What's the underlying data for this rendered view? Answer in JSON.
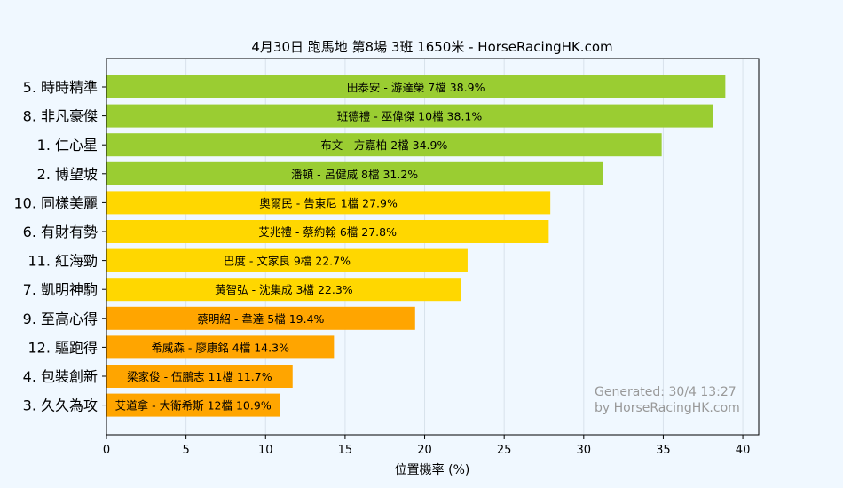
{
  "chart_data": {
    "type": "bar",
    "orientation": "horizontal",
    "title": "4月30日  跑馬地  第8場  3班  1650米 - HorseRacingHK.com",
    "xlabel": "位置機率 (%)",
    "ylabel": "",
    "xlim": [
      0,
      41
    ],
    "xticks": [
      0,
      5,
      10,
      15,
      20,
      25,
      30,
      35,
      40
    ],
    "grid": "vertical",
    "categories": [
      "5. 時時精準",
      "8. 非凡豪傑",
      "1. 仁心星",
      "2. 博望坡",
      "10. 同樣美麗",
      "6. 有財有勢",
      "11. 紅海勁",
      "7. 凱明神駒",
      "9. 至高心得",
      "12. 驅跑得",
      "4. 包裝創新",
      "3. 久久為攻"
    ],
    "values": [
      38.9,
      38.1,
      34.9,
      31.2,
      27.9,
      27.8,
      22.7,
      22.3,
      19.4,
      14.3,
      11.7,
      10.9
    ],
    "bar_labels": [
      "田泰安 - 游達榮 7檔  38.9%",
      "班德禮 - 巫偉傑 10檔  38.1%",
      "布文 - 方嘉柏 2檔  34.9%",
      "潘頓 - 呂健威 8檔  31.2%",
      "奧爾民 - 告東尼 1檔  27.9%",
      "艾兆禮 - 蔡約翰 6檔  27.8%",
      "巴度 - 文家良 9檔  22.7%",
      "黃智弘 - 沈集成 3檔  22.3%",
      "蔡明紹 - 韋達 5檔  19.4%",
      "希威森 - 廖康銘 4檔  14.3%",
      "梁家俊 - 伍鵬志 11檔  11.7%",
      "艾道拿 - 大衛希斯 12檔  10.9%"
    ],
    "tiers": [
      "green",
      "green",
      "green",
      "green",
      "yellow",
      "yellow",
      "yellow",
      "yellow",
      "orange",
      "orange",
      "orange",
      "orange"
    ],
    "colors": {
      "green": "#9acd32",
      "yellow": "#ffd700",
      "orange": "#ffa500",
      "background": "#f0f8ff",
      "plot_background": "#f0f8ff",
      "grid": "#d8e2ec"
    },
    "annotation": [
      "Generated: 30/4 13:27",
      "by HorseRacingHK.com"
    ]
  }
}
